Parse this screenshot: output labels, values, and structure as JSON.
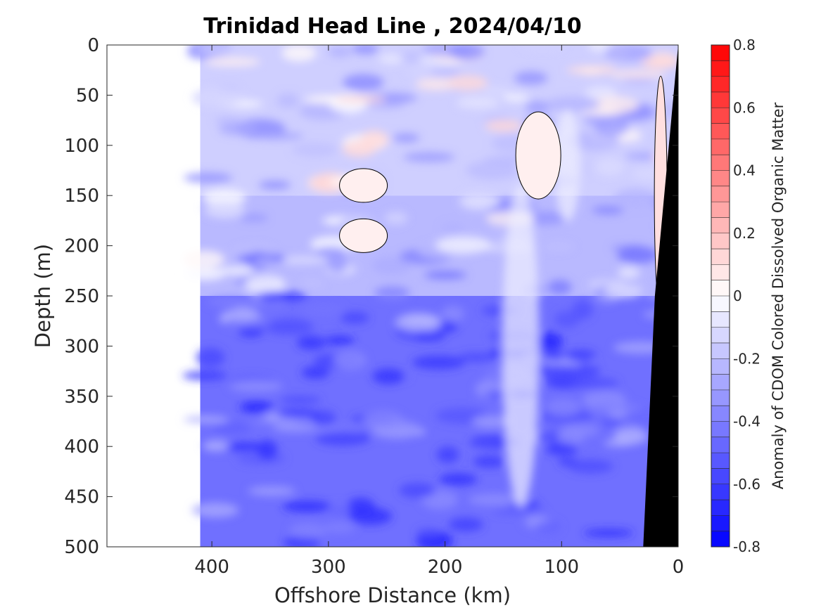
{
  "chart_data": {
    "type": "heatmap",
    "title": "Trinidad Head Line , 2024/04/10",
    "xlabel": "Offshore Distance (km)",
    "ylabel": "Depth (m)",
    "xlim": [
      490,
      0
    ],
    "ylim": [
      0,
      500
    ],
    "x_reversed": true,
    "y_reversed": true,
    "xticks": [
      400,
      300,
      200,
      100,
      0
    ],
    "yticks": [
      0,
      50,
      100,
      150,
      200,
      250,
      300,
      350,
      400,
      450,
      500
    ],
    "data_extent_km": [
      0,
      410
    ],
    "colorbar": {
      "label": "Anomaly of CDOM Colored Dissolved Organic Matter",
      "range": [
        -0.8,
        0.8
      ],
      "ticks": [
        0.8,
        0.6,
        0.4,
        0.2,
        0,
        -0.2,
        -0.4,
        -0.6,
        -0.8
      ],
      "tick_labels": [
        "0.8",
        "0.6",
        "0.4",
        "0.2",
        "0",
        "-0.2",
        "-0.4",
        "-0.6",
        "-0.8"
      ],
      "levels": 32,
      "colormap": [
        "#0000ff",
        "#ffffff",
        "#ff0000"
      ]
    },
    "depth_bands": [
      {
        "depth": [
          0,
          150
        ],
        "anomaly": -0.15
      },
      {
        "depth": [
          150,
          250
        ],
        "anomaly": -0.22
      },
      {
        "depth": [
          250,
          500
        ],
        "anomaly": -0.45
      }
    ],
    "zero_contour_patches": [
      {
        "x": 270,
        "depth": 140,
        "anomaly": 0.05
      },
      {
        "x": 270,
        "depth": 190,
        "anomaly": 0.05
      },
      {
        "x": 120,
        "depth": 110,
        "anomaly": 0.05
      },
      {
        "x": 15,
        "depth": 150,
        "anomaly": 0.1
      }
    ],
    "bathymetry": {
      "color": "#000000",
      "points": [
        [
          0,
          0
        ],
        [
          20,
          250
        ],
        [
          30,
          500
        ]
      ]
    }
  }
}
